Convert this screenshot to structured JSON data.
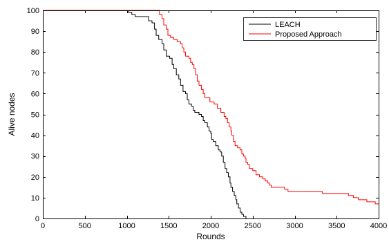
{
  "chart_data": {
    "type": "line",
    "title": "",
    "xlabel": "Rounds",
    "ylabel": "Alive nodes",
    "xlim": [
      0,
      4000
    ],
    "ylim": [
      0,
      100
    ],
    "xticks": [
      0,
      500,
      1000,
      1500,
      2000,
      2500,
      3000,
      3500,
      4000
    ],
    "yticks": [
      0,
      10,
      20,
      30,
      40,
      50,
      60,
      70,
      80,
      90,
      100
    ],
    "grid": false,
    "legend_position": "top-right",
    "series": [
      {
        "name": "LEACH",
        "color": "#000000",
        "step": true,
        "points": [
          [
            0,
            100
          ],
          [
            1000,
            100
          ],
          [
            1020,
            99
          ],
          [
            1060,
            98
          ],
          [
            1100,
            97
          ],
          [
            1220,
            97
          ],
          [
            1260,
            95
          ],
          [
            1300,
            94
          ],
          [
            1330,
            91
          ],
          [
            1350,
            88
          ],
          [
            1380,
            86
          ],
          [
            1420,
            84
          ],
          [
            1440,
            81
          ],
          [
            1470,
            78
          ],
          [
            1510,
            77
          ],
          [
            1540,
            74
          ],
          [
            1560,
            72
          ],
          [
            1590,
            69
          ],
          [
            1620,
            67
          ],
          [
            1640,
            64
          ],
          [
            1670,
            61
          ],
          [
            1700,
            60
          ],
          [
            1720,
            57
          ],
          [
            1740,
            55
          ],
          [
            1770,
            54
          ],
          [
            1790,
            52
          ],
          [
            1810,
            51
          ],
          [
            1860,
            50
          ],
          [
            1890,
            49
          ],
          [
            1910,
            47
          ],
          [
            1930,
            46
          ],
          [
            1960,
            44
          ],
          [
            1980,
            42
          ],
          [
            2000,
            41
          ],
          [
            2010,
            38
          ],
          [
            2030,
            37
          ],
          [
            2060,
            35
          ],
          [
            2090,
            33
          ],
          [
            2110,
            32
          ],
          [
            2130,
            30
          ],
          [
            2150,
            27
          ],
          [
            2170,
            24
          ],
          [
            2190,
            22
          ],
          [
            2210,
            20
          ],
          [
            2230,
            17
          ],
          [
            2240,
            15
          ],
          [
            2260,
            13
          ],
          [
            2280,
            11
          ],
          [
            2300,
            9
          ],
          [
            2310,
            7
          ],
          [
            2330,
            5
          ],
          [
            2350,
            3
          ],
          [
            2370,
            2
          ],
          [
            2390,
            1
          ],
          [
            2420,
            0
          ]
        ]
      },
      {
        "name": "Proposed Approach",
        "color": "#ff0000",
        "step": true,
        "points": [
          [
            0,
            100
          ],
          [
            1370,
            100
          ],
          [
            1390,
            98
          ],
          [
            1420,
            96
          ],
          [
            1440,
            93
          ],
          [
            1470,
            91
          ],
          [
            1490,
            88
          ],
          [
            1520,
            87
          ],
          [
            1560,
            86
          ],
          [
            1600,
            85
          ],
          [
            1640,
            84
          ],
          [
            1660,
            82
          ],
          [
            1680,
            80
          ],
          [
            1700,
            78
          ],
          [
            1740,
            77
          ],
          [
            1760,
            75
          ],
          [
            1780,
            74
          ],
          [
            1800,
            72
          ],
          [
            1820,
            69
          ],
          [
            1840,
            66
          ],
          [
            1860,
            64
          ],
          [
            1890,
            62
          ],
          [
            1910,
            60
          ],
          [
            1930,
            58
          ],
          [
            1990,
            56
          ],
          [
            2040,
            55
          ],
          [
            2080,
            53
          ],
          [
            2120,
            51
          ],
          [
            2160,
            49
          ],
          [
            2180,
            48
          ],
          [
            2200,
            46
          ],
          [
            2220,
            44
          ],
          [
            2240,
            42
          ],
          [
            2250,
            40
          ],
          [
            2270,
            37
          ],
          [
            2290,
            35
          ],
          [
            2320,
            34
          ],
          [
            2350,
            33
          ],
          [
            2370,
            31
          ],
          [
            2390,
            30
          ],
          [
            2410,
            29
          ],
          [
            2420,
            27
          ],
          [
            2440,
            26
          ],
          [
            2460,
            24
          ],
          [
            2500,
            23
          ],
          [
            2540,
            21
          ],
          [
            2580,
            20
          ],
          [
            2620,
            19
          ],
          [
            2650,
            18
          ],
          [
            2680,
            17
          ],
          [
            2700,
            16
          ],
          [
            2720,
            15
          ],
          [
            2850,
            15
          ],
          [
            2880,
            14
          ],
          [
            2920,
            13
          ],
          [
            3300,
            13
          ],
          [
            3330,
            12
          ],
          [
            3600,
            12
          ],
          [
            3640,
            11
          ],
          [
            3700,
            10
          ],
          [
            3760,
            9
          ],
          [
            3820,
            9
          ],
          [
            3860,
            8
          ],
          [
            3920,
            8
          ],
          [
            3960,
            7
          ],
          [
            4000,
            7
          ]
        ]
      }
    ]
  }
}
